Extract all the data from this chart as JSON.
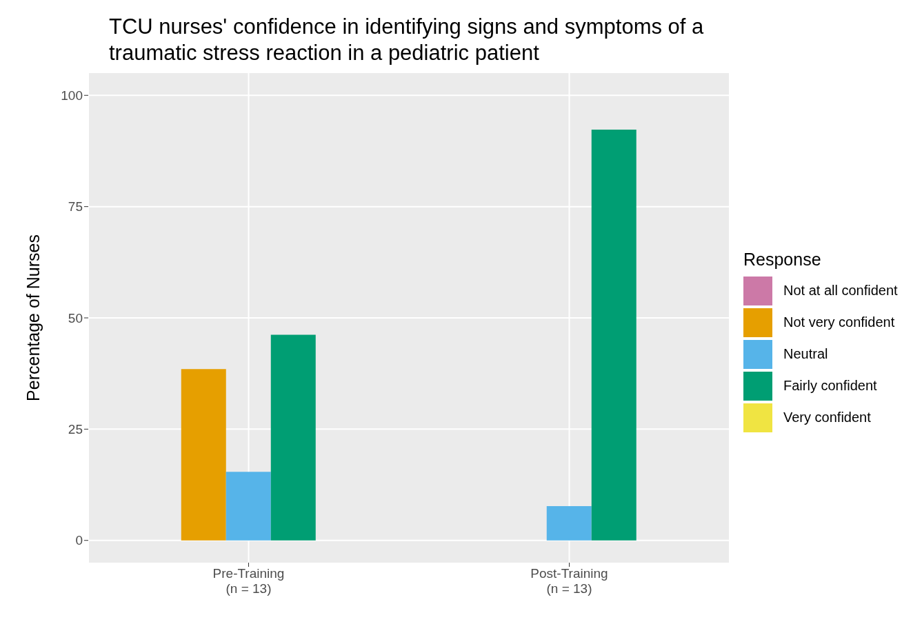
{
  "chart_data": {
    "type": "bar",
    "title": "TCU nurses' confidence in identifying signs and symptoms of a traumatic stress reaction in a pediatric patient",
    "ylabel": "Percentage of Nurses",
    "legend_title": "Response",
    "categories": [
      "Pre-Training\n(n = 13)",
      "Post-Training\n(n = 13)"
    ],
    "series": [
      {
        "name": "Not at all confident",
        "color": "#cc79a7",
        "values": [
          null,
          null
        ]
      },
      {
        "name": "Not very confident",
        "color": "#e69f00",
        "values": [
          38.5,
          null
        ]
      },
      {
        "name": "Neutral",
        "color": "#56b4e9",
        "values": [
          15.4,
          7.7
        ]
      },
      {
        "name": "Fairly confident",
        "color": "#009e73",
        "values": [
          46.2,
          92.3
        ]
      },
      {
        "name": "Very confident",
        "color": "#f0e442",
        "values": [
          null,
          null
        ]
      }
    ],
    "ylim": [
      -5,
      105
    ],
    "yticks": [
      0,
      25,
      50,
      75,
      100
    ],
    "grid": true,
    "legend": "right"
  }
}
